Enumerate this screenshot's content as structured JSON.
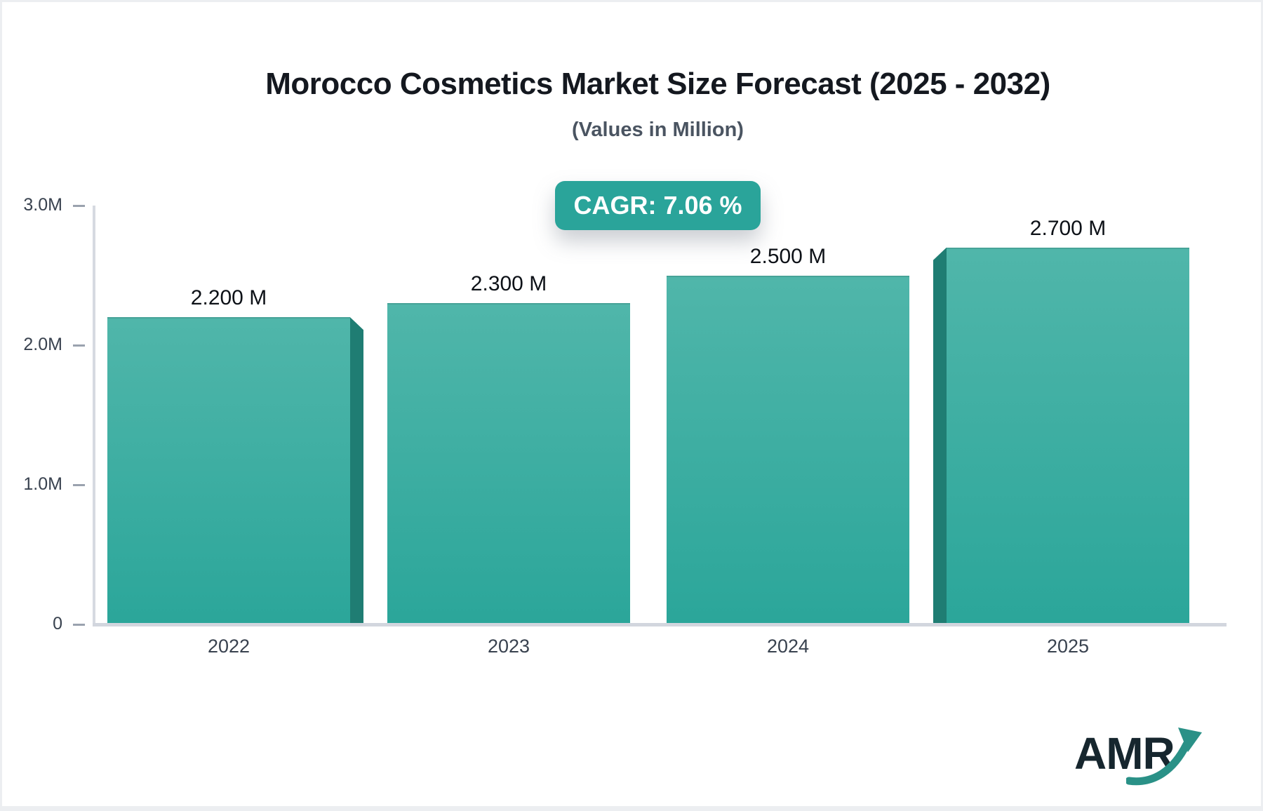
{
  "page": {
    "outer_background": "#eceef1",
    "card_background": "#ffffff"
  },
  "header": {
    "title": "Morocco Cosmetics Market Size Forecast (2025 - 2032)",
    "subtitle": "(Values in Million)"
  },
  "badge": {
    "label": "CAGR: 7.06 %",
    "background": "#2aa49a",
    "text_color": "#ffffff"
  },
  "chart_data": {
    "type": "bar",
    "categories": [
      "2022",
      "2023",
      "2024",
      "2025"
    ],
    "values": [
      2.2,
      2.3,
      2.5,
      2.7
    ],
    "value_labels": [
      "2.200 M",
      "2.300 M",
      "2.500 M",
      "2.700 M"
    ],
    "unit": "Million",
    "ylim": [
      0,
      3
    ],
    "yticks": [
      {
        "value": 0,
        "label": "0"
      },
      {
        "value": 1,
        "label": "1.0M"
      },
      {
        "value": 2,
        "label": "2.0M"
      },
      {
        "value": 3,
        "label": "3.0M"
      }
    ],
    "grid": false,
    "legend": null,
    "title": "Morocco Cosmetics Market Size Forecast (2025 - 2032)",
    "xlabel": "",
    "ylabel": "",
    "bar_colors": {
      "face_top": "#50b6aa",
      "face_bottom": "#2ba69a",
      "side": "#1f7d73"
    }
  },
  "logo": {
    "text": "AMR",
    "text_color": "#16262e",
    "arrow_color": "#2a9187"
  }
}
